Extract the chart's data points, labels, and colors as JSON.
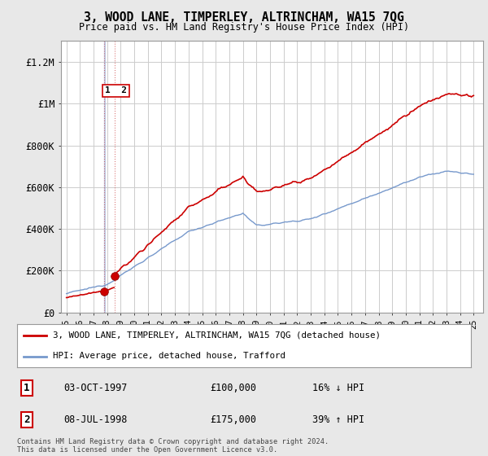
{
  "title": "3, WOOD LANE, TIMPERLEY, ALTRINCHAM, WA15 7QG",
  "subtitle": "Price paid vs. HM Land Registry's House Price Index (HPI)",
  "legend_line1": "3, WOOD LANE, TIMPERLEY, ALTRINCHAM, WA15 7QG (detached house)",
  "legend_line2": "HPI: Average price, detached house, Trafford",
  "transaction1_date": "03-OCT-1997",
  "transaction1_price": "£100,000",
  "transaction1_hpi": "16% ↓ HPI",
  "transaction2_date": "08-JUL-1998",
  "transaction2_price": "£175,000",
  "transaction2_hpi": "39% ↑ HPI",
  "footer": "Contains HM Land Registry data © Crown copyright and database right 2024.\nThis data is licensed under the Open Government Licence v3.0.",
  "hpi_color": "#7799cc",
  "price_color": "#cc0000",
  "marker_color": "#cc0000",
  "vline_color": "#aabbdd",
  "ylim": [
    0,
    1300000
  ],
  "yticks": [
    0,
    200000,
    400000,
    600000,
    800000,
    1000000,
    1200000
  ],
  "ytick_labels": [
    "£0",
    "£200K",
    "£400K",
    "£600K",
    "£800K",
    "£1M",
    "£1.2M"
  ],
  "background_color": "#e8e8e8",
  "plot_bg_color": "#ffffff",
  "grid_color": "#cccccc"
}
